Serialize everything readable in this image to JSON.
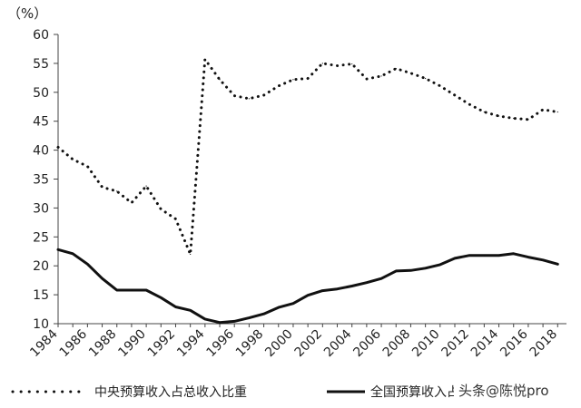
{
  "chart_data": {
    "type": "line",
    "ylabel": "（%）",
    "ylim": [
      10,
      60
    ],
    "yticks": [
      "10",
      "15",
      "20",
      "25",
      "30",
      "35",
      "40",
      "45",
      "50",
      "55",
      "60"
    ],
    "xticks": [
      "1984",
      "1986",
      "1988",
      "1990",
      "1992",
      "1994",
      "1996",
      "1998",
      "2000",
      "2002",
      "2004",
      "2006",
      "2008",
      "2010",
      "2012",
      "2014",
      "2016",
      "2018"
    ],
    "x": [
      1984,
      1985,
      1986,
      1987,
      1988,
      1989,
      1990,
      1991,
      1992,
      1993,
      1994,
      1995,
      1996,
      1997,
      1998,
      1999,
      2000,
      2001,
      2002,
      2003,
      2004,
      2005,
      2006,
      2007,
      2008,
      2009,
      2010,
      2011,
      2012,
      2013,
      2014,
      2015,
      2016,
      2017,
      2018
    ],
    "grid": false,
    "legend_position": "bottom",
    "series": [
      {
        "name": "中央预算收入占总收入比重",
        "style": "dotted",
        "color": "#111111",
        "values": [
          40.5,
          38.4,
          37.2,
          33.6,
          32.9,
          30.9,
          33.8,
          29.8,
          28.1,
          22.0,
          55.7,
          52.2,
          49.4,
          48.9,
          49.5,
          51.1,
          52.2,
          52.4,
          55.0,
          54.6,
          54.9,
          52.3,
          52.8,
          54.1,
          53.3,
          52.4,
          51.1,
          49.5,
          47.9,
          46.6,
          45.9,
          45.5,
          45.3,
          47.0,
          46.6
        ]
      },
      {
        "name": "全国预算收入占GDP比重",
        "style": "solid",
        "color": "#111111",
        "values": [
          22.8,
          22.1,
          20.3,
          17.8,
          15.8,
          15.8,
          15.8,
          14.5,
          12.9,
          12.3,
          10.8,
          10.2,
          10.4,
          11.0,
          11.7,
          12.8,
          13.5,
          14.9,
          15.7,
          16.0,
          16.5,
          17.1,
          17.8,
          19.1,
          19.2,
          19.6,
          20.2,
          21.3,
          21.8,
          21.8,
          21.8,
          22.1,
          21.5,
          21.0,
          20.3
        ]
      }
    ]
  },
  "legend": {
    "item1": "中央预算收入占总收入比重",
    "item2": "全国预算收入占GDP比重"
  },
  "watermark": "头条@陈悦pro"
}
